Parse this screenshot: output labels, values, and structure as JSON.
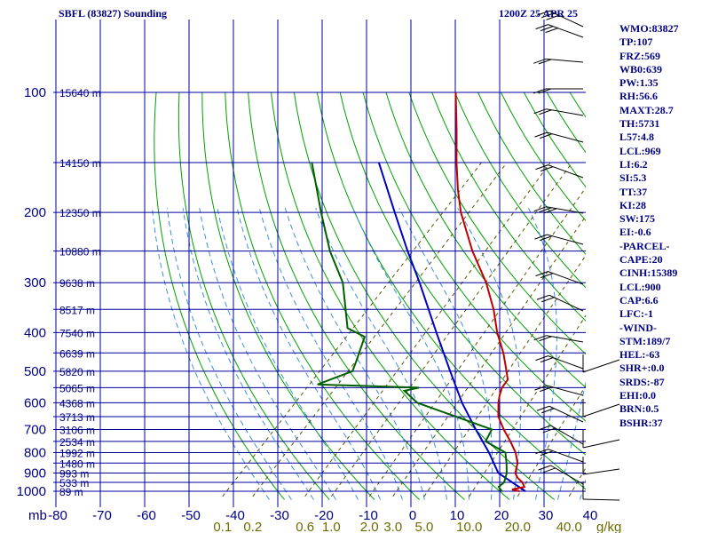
{
  "header": {
    "title": "SBFL (83827) Sounding",
    "datetime": "1200Z 25 APR 25"
  },
  "indices": [
    "WMO:83827",
    "TP:107",
    "FRZ:569",
    "WB0:639",
    "PW:1.35",
    "RH:56.6",
    "MAXT:28.7",
    "TH:5731",
    "L57:4.8",
    "LCL:969",
    "LI:6.2",
    "SI:5.3",
    "TT:37",
    "KI:28",
    "SW:175",
    "EI:-0.6",
    "-PARCEL-",
    "CAPE:20",
    "CINH:15389",
    "LCL:900",
    "CAP:6.6",
    "LFC:-1",
    "-WIND-",
    "STM:189/7",
    "HEL:-63",
    "SHR+:0.0",
    "SRDS:-87",
    "EHI:0.0",
    "BRN:0.5",
    "BSHR:37"
  ],
  "colors": {
    "grid": "#0000a0",
    "dry_adiabat": "#00a000",
    "moist_adiabat": "#3f8fdf",
    "mixing_ratio": "#555500",
    "temperature": "#c00000",
    "dewpoint": "#006000",
    "parcel": "#0000c0",
    "text": "#000080"
  },
  "chart_data": {
    "type": "skew-t",
    "pressure_labels": [
      "100",
      "200",
      "300",
      "400",
      "500",
      "600",
      "700",
      "800",
      "900",
      "1000"
    ],
    "x_unit_label": "mb",
    "temperature_ticks": [
      "-80",
      "-70",
      "-60",
      "-50",
      "-40",
      "-30",
      "-20",
      "-10",
      "0",
      "10",
      "20",
      "30",
      "40"
    ],
    "mixing_ratio_unit": "g/kg",
    "mixing_ratio_labels": [
      {
        "label": "0.1",
        "value": 0.1
      },
      {
        "label": "0.2",
        "value": 0.2
      },
      {
        "label": "0.6",
        "value": 0.6
      },
      {
        "label": "1.0",
        "value": 1.0
      },
      {
        "label": "2.0",
        "value": 2.0
      },
      {
        "label": "3.0",
        "value": 3.0
      },
      {
        "label": "5.0",
        "value": 5.0
      },
      {
        "label": "10.0",
        "value": 10.0
      },
      {
        "label": "20.0",
        "value": 20.0
      },
      {
        "label": "40.0",
        "value": 40.0
      }
    ],
    "height_labels": [
      {
        "p": 100,
        "text": "15640 m"
      },
      {
        "p": 150,
        "text": "14150 m"
      },
      {
        "p": 200,
        "text": "12350 m"
      },
      {
        "p": 250,
        "text": "10880 m"
      },
      {
        "p": 300,
        "text": "9638 m"
      },
      {
        "p": 350,
        "text": "8517 m"
      },
      {
        "p": 400,
        "text": "7540 m"
      },
      {
        "p": 450,
        "text": "6639 m"
      },
      {
        "p": 500,
        "text": "5820 m"
      },
      {
        "p": 550,
        "text": "5065 m"
      },
      {
        "p": 600,
        "text": "4368 m"
      },
      {
        "p": 650,
        "text": "3713 m"
      },
      {
        "p": 700,
        "text": "3106 m"
      },
      {
        "p": 750,
        "text": "2534 m"
      },
      {
        "p": 800,
        "text": "1992 m"
      },
      {
        "p": 850,
        "text": "1480 m"
      },
      {
        "p": 900,
        "text": "993 m"
      },
      {
        "p": 950,
        "text": "533 m"
      },
      {
        "p": 1000,
        "text": "89 m"
      }
    ],
    "temperature_profile": [
      {
        "p": 1000,
        "t": 24.5
      },
      {
        "p": 990,
        "t": 22.4
      },
      {
        "p": 975,
        "t": 24.6
      },
      {
        "p": 950,
        "t": 23.1
      },
      {
        "p": 925,
        "t": 21.0
      },
      {
        "p": 900,
        "t": 19.4
      },
      {
        "p": 850,
        "t": 17.7
      },
      {
        "p": 800,
        "t": 14.9
      },
      {
        "p": 750,
        "t": 11.2
      },
      {
        "p": 700,
        "t": 7.0
      },
      {
        "p": 650,
        "t": 2.9
      },
      {
        "p": 600,
        "t": -0.2
      },
      {
        "p": 575,
        "t": -1.6
      },
      {
        "p": 550,
        "t": -2.8
      },
      {
        "p": 525,
        "t": -3.3
      },
      {
        "p": 500,
        "t": -5.5
      },
      {
        "p": 450,
        "t": -10.3
      },
      {
        "p": 400,
        "t": -16.3
      },
      {
        "p": 350,
        "t": -22.3
      },
      {
        "p": 300,
        "t": -30.0
      },
      {
        "p": 250,
        "t": -40.2
      },
      {
        "p": 200,
        "t": -51.5
      },
      {
        "p": 175,
        "t": -57.4
      },
      {
        "p": 150,
        "t": -63.7
      },
      {
        "p": 125,
        "t": -70.8
      },
      {
        "p": 100,
        "t": -79.7
      }
    ],
    "dewpoint_profile": [
      {
        "p": 1000,
        "t": 20.5
      },
      {
        "p": 975,
        "t": 18.8
      },
      {
        "p": 950,
        "t": 19.0
      },
      {
        "p": 900,
        "t": 17.5
      },
      {
        "p": 850,
        "t": 15.2
      },
      {
        "p": 800,
        "t": 12.6
      },
      {
        "p": 750,
        "t": 5.6
      },
      {
        "p": 700,
        "t": 4.3
      },
      {
        "p": 600,
        "t": -18.5
      },
      {
        "p": 560,
        "t": -24.1
      },
      {
        "p": 550,
        "t": -21.5
      },
      {
        "p": 540,
        "t": -45.1
      },
      {
        "p": 500,
        "t": -40.2
      },
      {
        "p": 470,
        "t": -41.7
      },
      {
        "p": 410,
        "t": -45.2
      },
      {
        "p": 390,
        "t": -51.0
      },
      {
        "p": 300,
        "t": -62.3
      },
      {
        "p": 250,
        "t": -72.3
      },
      {
        "p": 200,
        "t": -83.0
      },
      {
        "p": 150,
        "t": -96.3
      }
    ],
    "parcel_profile": [
      {
        "p": 1000,
        "t": 25.8
      },
      {
        "p": 900,
        "t": 15.6
      },
      {
        "p": 800,
        "t": 8.9
      },
      {
        "p": 700,
        "t": 0.7
      },
      {
        "p": 600,
        "t": -8.4
      },
      {
        "p": 500,
        "t": -18.2
      },
      {
        "p": 400,
        "t": -30.0
      },
      {
        "p": 300,
        "t": -45.0
      },
      {
        "p": 250,
        "t": -54.8
      },
      {
        "p": 200,
        "t": -66.4
      },
      {
        "p": 150,
        "t": -81.2
      }
    ],
    "grid": true
  }
}
